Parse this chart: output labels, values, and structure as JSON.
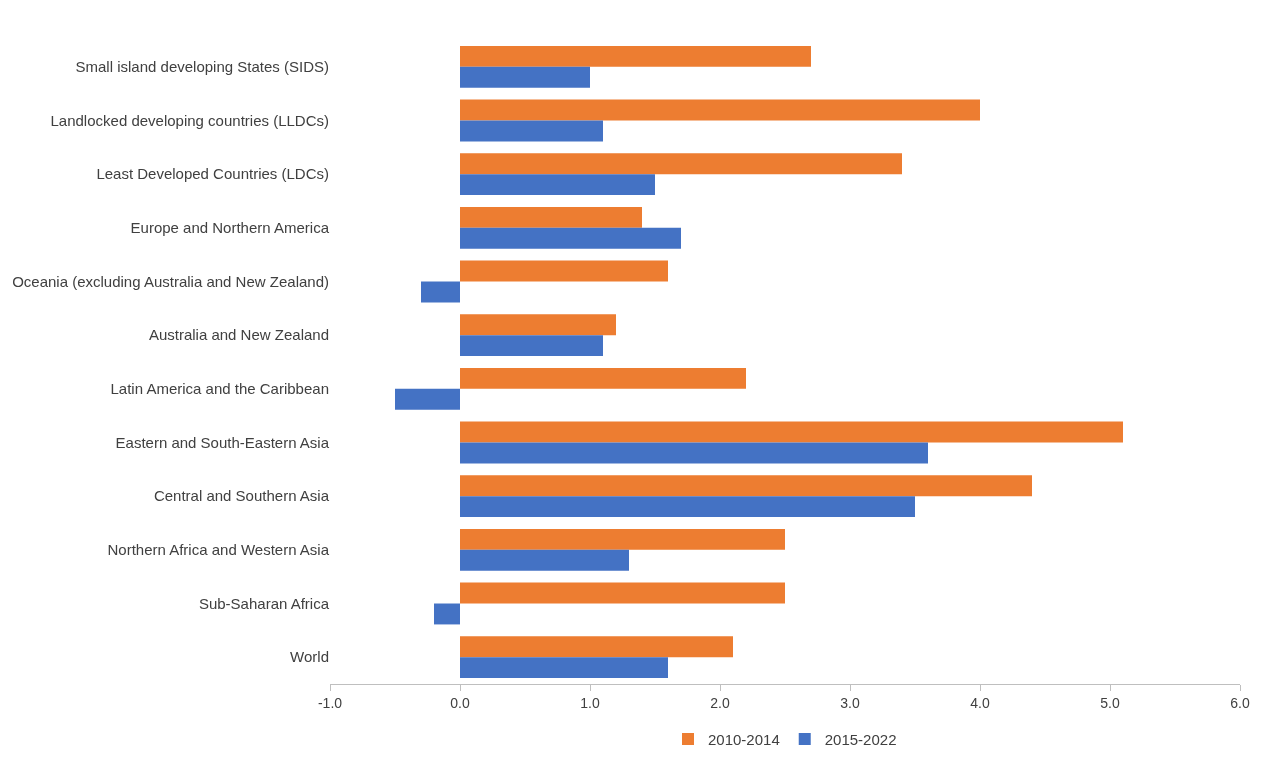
{
  "chart_data": {
    "type": "bar",
    "orientation": "horizontal",
    "categories": [
      "Small island developing States (SIDS)",
      "Landlocked developing countries (LLDCs)",
      "Least Developed Countries (LDCs)",
      "Europe and Northern America",
      "Oceania (excluding Australia and New Zealand)",
      "Australia and New Zealand",
      "Latin America and the Caribbean",
      "Eastern and South-Eastern Asia",
      "Central and Southern Asia",
      "Northern Africa and Western Asia",
      "Sub-Saharan Africa",
      "World"
    ],
    "series": [
      {
        "name": "2010-2014",
        "color": "#ed7d31",
        "values": [
          2.7,
          4.0,
          3.4,
          1.4,
          1.6,
          1.2,
          2.2,
          5.1,
          4.4,
          2.5,
          2.5,
          2.1
        ]
      },
      {
        "name": "2015-2022",
        "color": "#4472c4",
        "values": [
          1.0,
          1.1,
          1.5,
          1.7,
          -0.3,
          1.1,
          -0.5,
          3.6,
          3.5,
          1.3,
          -0.2,
          1.6
        ]
      }
    ],
    "xlim": [
      -1.0,
      6.0
    ],
    "xticks": [
      {
        "value": -1,
        "label": "-1.0"
      },
      {
        "value": 0,
        "label": "0.0"
      },
      {
        "value": 1,
        "label": "1.0"
      },
      {
        "value": 2,
        "label": "2.0"
      },
      {
        "value": 3,
        "label": "3.0"
      },
      {
        "value": 4,
        "label": "4.0"
      },
      {
        "value": 5,
        "label": "5.0"
      },
      {
        "value": 6,
        "label": "6.0"
      }
    ],
    "grid": false,
    "legend": "bottom"
  }
}
